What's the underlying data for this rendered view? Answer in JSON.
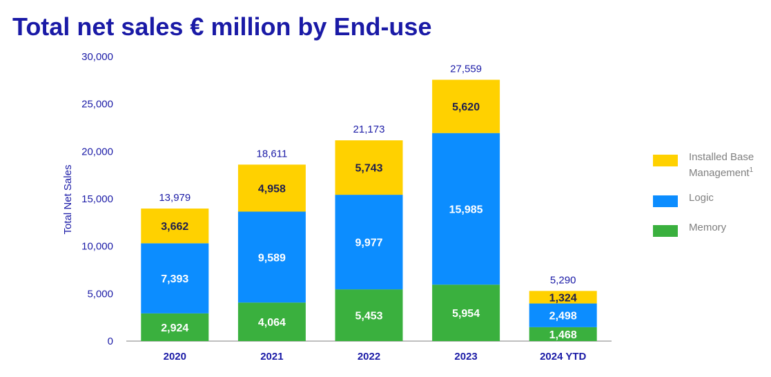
{
  "title": "Total net sales € million by End-use",
  "chart_data": {
    "type": "bar",
    "stacked": true,
    "title": "Total net sales € million by End-use",
    "xlabel": "",
    "ylabel": "Total Net Sales",
    "ylim": [
      0,
      30000
    ],
    "yticks": [
      "0",
      "5,000",
      "10,000",
      "15,000",
      "20,000",
      "25,000",
      "30,000"
    ],
    "categories": [
      "2020",
      "2021",
      "2022",
      "2023",
      "2024 YTD"
    ],
    "series": [
      {
        "name": "Memory",
        "color": "#3ab03e",
        "values": [
          2924,
          4064,
          5453,
          5954,
          1468
        ],
        "labels": [
          "2,924",
          "4,064",
          "5,453",
          "5,954",
          "1,468"
        ]
      },
      {
        "name": "Logic",
        "color": "#0c8dff",
        "values": [
          7393,
          9589,
          9977,
          15985,
          2498
        ],
        "labels": [
          "7,393",
          "9,589",
          "9,977",
          "15,985",
          "2,498"
        ]
      },
      {
        "name": "Installed Base Management",
        "color": "#ffd100",
        "values": [
          3662,
          4958,
          5743,
          5620,
          1324
        ],
        "labels": [
          "3,662",
          "4,958",
          "5,743",
          "5,620",
          "1,324"
        ]
      }
    ],
    "totals": [
      "13,979",
      "18,611",
      "21,173",
      "27,559",
      "5,290"
    ],
    "legend_position": "right",
    "grid": false
  },
  "legend": {
    "items": [
      {
        "label": "Installed Base",
        "label2": "Management",
        "sup": "1",
        "color": "#ffd100"
      },
      {
        "label": "Logic",
        "color": "#0c8dff"
      },
      {
        "label": "Memory",
        "color": "#3ab03e"
      }
    ]
  }
}
